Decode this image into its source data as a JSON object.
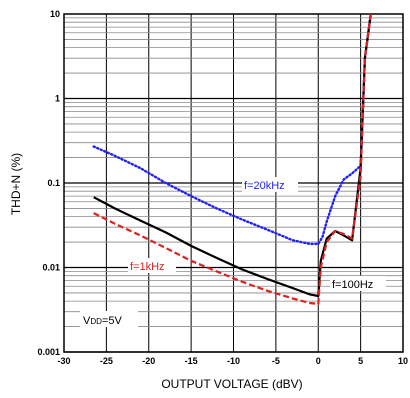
{
  "chart_data": {
    "type": "line",
    "xlabel": "OUTPUT VOLTAGE (dBV)",
    "ylabel": "THD+N (%)",
    "xlim": [
      -30,
      10
    ],
    "ylim": [
      0.001,
      10
    ],
    "yscale": "log",
    "grid": true,
    "x_ticks": [
      "-30",
      "-25",
      "-20",
      "-15",
      "-10",
      "-5",
      "0",
      "5",
      "10"
    ],
    "y_ticks": [
      "0.001",
      "0.01",
      "0.1",
      "1",
      "10"
    ],
    "annotations": {
      "f20k": "f=20kHz",
      "f1k": "f=1kHz",
      "f100": "f=100Hz",
      "vdd_main": "V",
      "vdd_sub": "DD",
      "vdd_value": "=5V"
    },
    "series": [
      {
        "label_ref": "f20k",
        "color": "#2020ff",
        "style": "dotted",
        "x": [
          -26.5,
          -24,
          -21,
          -18,
          -15,
          -12,
          -9,
          -6,
          -3,
          -1,
          0,
          0.5,
          1,
          2,
          3,
          4,
          5,
          5.5,
          6.2
        ],
        "y": [
          0.27,
          0.21,
          0.15,
          0.1,
          0.07,
          0.05,
          0.037,
          0.028,
          0.021,
          0.019,
          0.019,
          0.023,
          0.035,
          0.07,
          0.11,
          0.13,
          0.16,
          3.0,
          10
        ]
      },
      {
        "label_ref": "f100",
        "color": "#000000",
        "style": "solid",
        "x": [
          -26.5,
          -24,
          -21,
          -18,
          -15,
          -12,
          -9,
          -6,
          -3,
          -1,
          0,
          0.3,
          1,
          2,
          3,
          4,
          5,
          5.5,
          6.2
        ],
        "y": [
          0.068,
          0.05,
          0.036,
          0.026,
          0.018,
          0.013,
          0.0095,
          0.0073,
          0.0057,
          0.0048,
          0.0046,
          0.012,
          0.022,
          0.027,
          0.024,
          0.021,
          0.15,
          3.0,
          10
        ]
      },
      {
        "label_ref": "f1k",
        "color": "#e02020",
        "style": "dashed",
        "x": [
          -26.5,
          -24,
          -21,
          -18,
          -15,
          -12,
          -9,
          -6,
          -3,
          -1,
          0,
          0.3,
          1,
          2,
          3,
          4,
          5,
          5.5,
          6.2
        ],
        "y": [
          0.044,
          0.033,
          0.024,
          0.017,
          0.012,
          0.009,
          0.0068,
          0.0053,
          0.0043,
          0.0038,
          0.0037,
          0.01,
          0.02,
          0.027,
          0.025,
          0.022,
          0.12,
          3.0,
          10
        ]
      }
    ]
  }
}
